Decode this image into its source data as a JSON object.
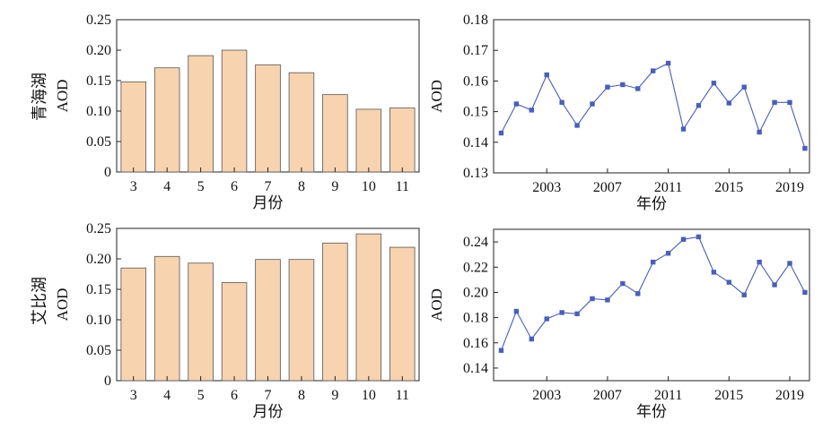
{
  "rows": [
    {
      "label": "青海湖"
    },
    {
      "label": "艾比湖"
    }
  ],
  "colors": {
    "bar_fill": "#f7d3b0",
    "line": "#4a5fb5",
    "marker": "#4a5fb5"
  },
  "chart_data": [
    {
      "type": "bar",
      "categories": [
        "3",
        "4",
        "5",
        "6",
        "7",
        "8",
        "9",
        "10",
        "11"
      ],
      "values": [
        0.148,
        0.171,
        0.191,
        0.2,
        0.176,
        0.163,
        0.127,
        0.103,
        0.105
      ],
      "xlabel": "月份",
      "ylabel": "AOD",
      "ylim": [
        0,
        0.25
      ],
      "yticks": [
        "0",
        "0.05",
        "0.10",
        "0.15",
        "0.20",
        "0.25"
      ]
    },
    {
      "type": "line",
      "x": [
        2000,
        2001,
        2002,
        2003,
        2004,
        2005,
        2006,
        2007,
        2008,
        2009,
        2010,
        2011,
        2012,
        2013,
        2014,
        2015,
        2016,
        2017,
        2018,
        2019,
        2020
      ],
      "series": [
        {
          "values": [
            0.143,
            0.1525,
            0.1505,
            0.162,
            0.153,
            0.1455,
            0.1525,
            0.158,
            0.1588,
            0.1575,
            0.1633,
            0.1658,
            0.1443,
            0.152,
            0.1593,
            0.1528,
            0.158,
            0.1433,
            0.153,
            0.153,
            0.138
          ]
        }
      ],
      "xlabel": "年份",
      "ylabel": "AOD",
      "xlim": [
        1999.5,
        2020.3
      ],
      "ylim": [
        0.13,
        0.18
      ],
      "xticks": [
        "2003",
        "2007",
        "2011",
        "2015",
        "2019"
      ],
      "yticks": [
        "0.13",
        "0.14",
        "0.15",
        "0.16",
        "0.17",
        "0.18"
      ]
    },
    {
      "type": "bar",
      "categories": [
        "3",
        "4",
        "5",
        "6",
        "7",
        "8",
        "9",
        "10",
        "11"
      ],
      "values": [
        0.185,
        0.204,
        0.193,
        0.161,
        0.199,
        0.199,
        0.226,
        0.241,
        0.219
      ],
      "xlabel": "月份",
      "ylabel": "AOD",
      "ylim": [
        0,
        0.25
      ],
      "yticks": [
        "0",
        "0.05",
        "0.10",
        "0.15",
        "0.20",
        "0.25"
      ]
    },
    {
      "type": "line",
      "x": [
        2000,
        2001,
        2002,
        2003,
        2004,
        2005,
        2006,
        2007,
        2008,
        2009,
        2010,
        2011,
        2012,
        2013,
        2014,
        2015,
        2016,
        2017,
        2018,
        2019,
        2020
      ],
      "series": [
        {
          "values": [
            0.154,
            0.185,
            0.163,
            0.179,
            0.184,
            0.183,
            0.195,
            0.194,
            0.207,
            0.199,
            0.224,
            0.231,
            0.242,
            0.244,
            0.216,
            0.208,
            0.198,
            0.224,
            0.206,
            0.223,
            0.2
          ]
        }
      ],
      "xlabel": "年份",
      "ylabel": "AOD",
      "xlim": [
        1999.5,
        2020.3
      ],
      "ylim": [
        0.13,
        0.25
      ],
      "xticks": [
        "2003",
        "2007",
        "2011",
        "2015",
        "2019"
      ],
      "yticks": [
        "0.14",
        "0.16",
        "0.18",
        "0.20",
        "0.22",
        "0.24"
      ]
    }
  ]
}
